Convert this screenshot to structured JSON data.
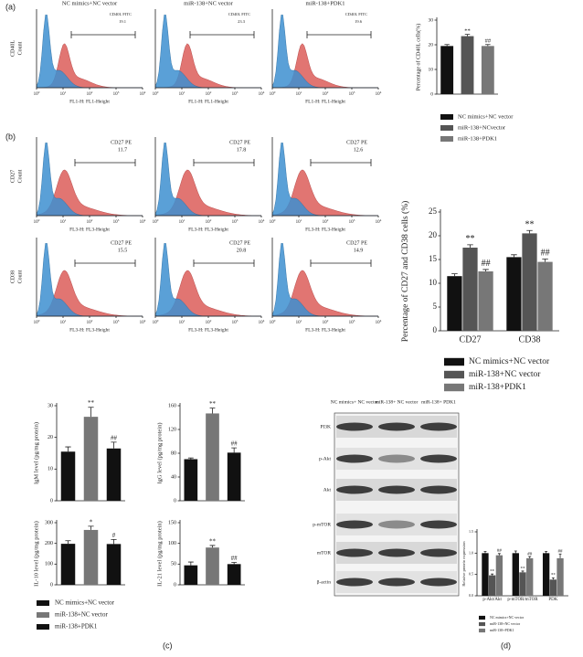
{
  "panel_labels": [
    "(a)",
    "(b)",
    "(c)",
    "(d)"
  ],
  "flow": {
    "column_titles": [
      "NC mimics+NC vector",
      "miR-138+NC vector",
      "miR-138+PDK1"
    ],
    "tick_base": "10",
    "tick_exponents": [
      0,
      1,
      2,
      3,
      4
    ],
    "rows": [
      {
        "y_label": [
          "CD40L",
          "Count"
        ],
        "x_label": "FL1-H: FL1-Height",
        "gate": "CD40L FITC",
        "values": [
          19.1,
          23.3,
          19.6
        ]
      },
      {
        "y_label": [
          "CD27",
          "Count"
        ],
        "x_label": "FL3-H: FL3-Height",
        "gate": "CD27 PE",
        "values": [
          11.7,
          17.8,
          12.6
        ]
      },
      {
        "y_label": [
          "CD38",
          "Count"
        ],
        "x_label": "FL3-H: FL3-Height",
        "gate": "CD27 PE",
        "values": [
          15.5,
          20.8,
          14.9
        ]
      }
    ]
  },
  "panel_c_legend": [
    "NC mimics+NC vector",
    "miR-138+NC vector",
    "miR-138+PDK1"
  ],
  "western": {
    "columns": [
      "NC mimics+ NC vector",
      "miR-138+ NC vector",
      "miR-138+ PDK1"
    ],
    "rows": [
      "PI3K",
      "p-Akt",
      "Akt",
      "p-mTOR",
      "mTOR",
      "β-actin"
    ]
  },
  "chart_data": [
    {
      "type": "bar",
      "y_label": "Percentage of CD40L cells(%)",
      "values": [
        19.5,
        23.5,
        19.5
      ],
      "errors": [
        0.6,
        0.7,
        0.6
      ],
      "colors": [
        "#111111",
        "#555555",
        "#777777"
      ],
      "legend": [
        "NC mimics+NC vector",
        "miR-138+NCvector",
        "miR-138+PDK1"
      ],
      "ylim": [
        0,
        30
      ],
      "yticks": [
        0,
        10,
        20,
        30
      ],
      "annotations": [
        {
          "text": "**",
          "index": 1
        },
        {
          "text": "##",
          "index": 2
        }
      ]
    },
    {
      "type": "bar",
      "y_label": "Percentage of CD27 and CD38 cells (%)",
      "categories": [
        "CD27",
        "CD38"
      ],
      "series": [
        {
          "name": "NC mimics+NC vector",
          "color": "#111111",
          "values": [
            11.5,
            15.5
          ],
          "errors": [
            0.5,
            0.5
          ]
        },
        {
          "name": "miR-138+NC vector",
          "color": "#555555",
          "values": [
            17.5,
            20.5
          ],
          "errors": [
            0.6,
            0.6
          ]
        },
        {
          "name": "miR-138+PDK1",
          "color": "#777777",
          "values": [
            12.5,
            14.5
          ],
          "errors": [
            0.4,
            0.6
          ]
        }
      ],
      "ylim": [
        0,
        25
      ],
      "yticks": [
        0,
        5,
        10,
        15,
        20,
        25
      ],
      "annotations": [
        {
          "text": "**",
          "series": 1,
          "index": 0
        },
        {
          "text": "##",
          "series": 2,
          "index": 0
        },
        {
          "text": "**",
          "series": 1,
          "index": 1
        },
        {
          "text": "##",
          "series": 2,
          "index": 1
        }
      ]
    },
    {
      "type": "bar",
      "y_label": "IgM level (pg/mg protein)",
      "values": [
        15.5,
        26.5,
        16.5
      ],
      "errors": [
        1.5,
        3,
        2
      ],
      "colors": [
        "#111111",
        "#777777",
        "#111111"
      ],
      "ylim": [
        0,
        30
      ],
      "yticks": [
        0,
        10,
        20,
        30
      ],
      "annotations": [
        {
          "text": "**",
          "index": 1
        },
        {
          "text": "##",
          "index": 2
        }
      ]
    },
    {
      "type": "bar",
      "y_label": "IgG level (pg/mg protein)",
      "values": [
        70,
        147,
        81
      ],
      "errors": [
        2,
        9,
        8
      ],
      "colors": [
        "#111111",
        "#777777",
        "#111111"
      ],
      "ylim": [
        0,
        160
      ],
      "yticks": [
        0,
        40,
        80,
        120,
        160
      ],
      "annotations": [
        {
          "text": "**",
          "index": 1
        },
        {
          "text": "##",
          "index": 2
        }
      ]
    },
    {
      "type": "bar",
      "y_label": "IL-10 level (pg/mg protein)",
      "values": [
        198,
        265,
        197
      ],
      "errors": [
        15,
        18,
        22
      ],
      "colors": [
        "#111111",
        "#777777",
        "#111111"
      ],
      "ylim": [
        0,
        300
      ],
      "yticks": [
        0,
        100,
        200,
        300
      ],
      "annotations": [
        {
          "text": "*",
          "index": 1
        },
        {
          "text": "#",
          "index": 2
        }
      ]
    },
    {
      "type": "bar",
      "y_label": "IL-21 level (pg/mg protein)",
      "values": [
        47,
        90,
        50
      ],
      "errors": [
        8,
        5,
        4
      ],
      "colors": [
        "#111111",
        "#777777",
        "#111111"
      ],
      "ylim": [
        0,
        150
      ],
      "yticks": [
        0,
        50,
        100,
        150
      ],
      "annotations": [
        {
          "text": "**",
          "index": 1
        },
        {
          "text": "##",
          "index": 2
        }
      ]
    },
    {
      "type": "bar",
      "y_label": "Relative protein expression",
      "categories": [
        "p-Akt/Akt",
        "p-mTOR/mTOR",
        "PDK"
      ],
      "series": [
        {
          "name": "NC mimics+NC vector",
          "color": "#111111",
          "values": [
            1.0,
            1.0,
            1.0
          ],
          "errors": [
            0.04,
            0.05,
            0.04
          ]
        },
        {
          "name": "miR-138+NC vector",
          "color": "#555555",
          "values": [
            0.48,
            0.55,
            0.38
          ],
          "errors": [
            0.03,
            0.03,
            0.04
          ]
        },
        {
          "name": "miR-138+PDK1",
          "color": "#777777",
          "values": [
            0.95,
            0.88,
            0.88
          ],
          "errors": [
            0.04,
            0.04,
            0.1
          ]
        }
      ],
      "ylim": [
        0,
        1.5
      ],
      "yticks": [
        {
          "value": 0,
          "label": "0.0"
        },
        0.5,
        {
          "value": 1,
          "label": "1.0"
        },
        1.5
      ],
      "annotations": [
        {
          "text": "**",
          "series": 1,
          "index": 0
        },
        {
          "text": "##",
          "series": 2,
          "index": 0
        },
        {
          "text": "**",
          "series": 1,
          "index": 1
        },
        {
          "text": "##",
          "series": 2,
          "index": 1
        },
        {
          "text": "**",
          "series": 1,
          "index": 2
        },
        {
          "text": "##",
          "series": 2,
          "index": 2
        }
      ]
    }
  ]
}
